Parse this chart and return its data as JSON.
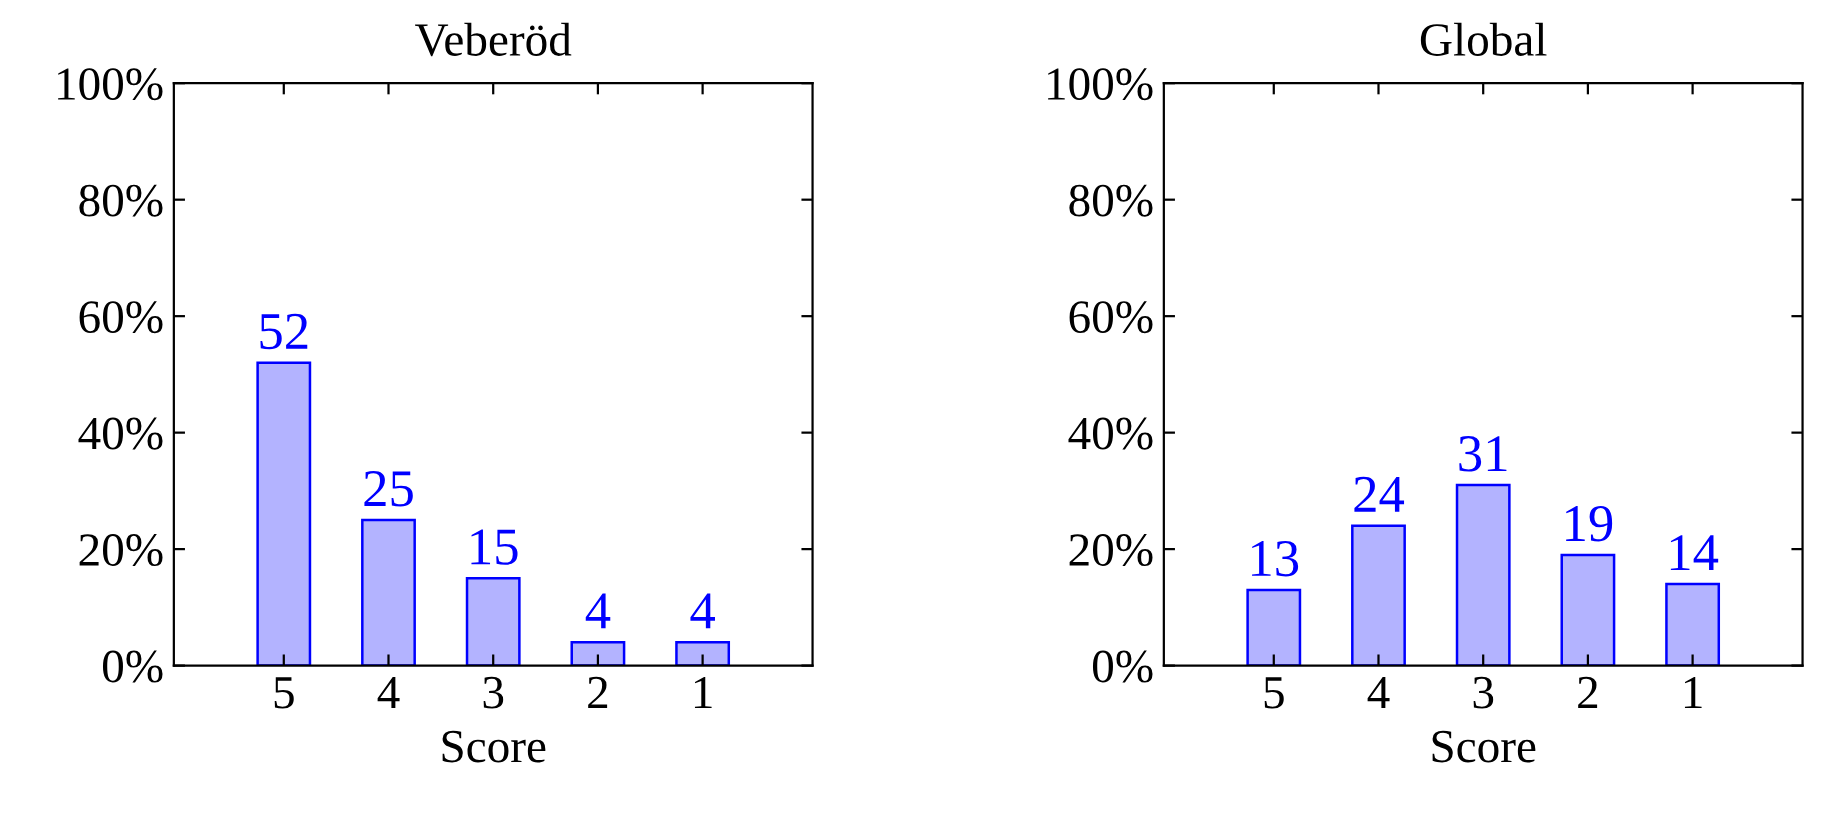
{
  "chart_data": [
    {
      "type": "bar",
      "title": "Veberöd",
      "xlabel": "Score",
      "categories": [
        "5",
        "4",
        "3",
        "2",
        "1"
      ],
      "values": [
        52,
        25,
        15,
        4,
        4
      ],
      "color": "#b3b3ff",
      "data_labels": true,
      "ylim": [
        0,
        100
      ],
      "yticks": [
        {
          "value": 0,
          "label": "0%"
        },
        {
          "value": 20,
          "label": "20%"
        },
        {
          "value": 40,
          "label": "40%"
        },
        {
          "value": 60,
          "label": "60%"
        },
        {
          "value": 80,
          "label": "80%"
        },
        {
          "value": 100,
          "label": "100%"
        }
      ],
      "grid": false,
      "legend": false
    },
    {
      "type": "bar",
      "title": "Global",
      "xlabel": "Score",
      "categories": [
        "5",
        "4",
        "3",
        "2",
        "1"
      ],
      "values": [
        13,
        24,
        31,
        19,
        14
      ],
      "color": "#b3b3ff",
      "data_labels": true,
      "ylim": [
        0,
        100
      ],
      "yticks": [
        {
          "value": 0,
          "label": "0%"
        },
        {
          "value": 20,
          "label": "20%"
        },
        {
          "value": 40,
          "label": "40%"
        },
        {
          "value": 60,
          "label": "60%"
        },
        {
          "value": 80,
          "label": "80%"
        },
        {
          "value": 100,
          "label": "100%"
        }
      ],
      "grid": false,
      "legend": false
    }
  ]
}
